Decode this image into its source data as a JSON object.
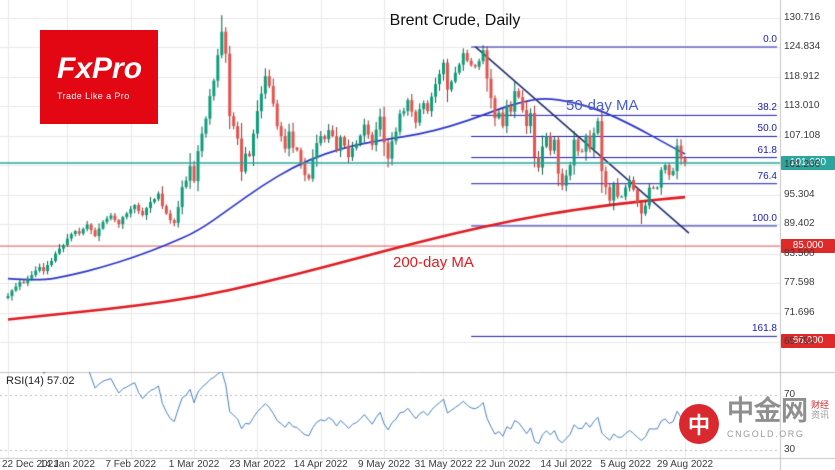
{
  "logo": {
    "name": "FxPro",
    "tagline": "Trade Like a Pro"
  },
  "watermark": {
    "name": "中金网",
    "domain": "CNGOLD.ORG",
    "tags": [
      "财经",
      "资讯"
    ],
    "logo_glyph": "中"
  },
  "colors": {
    "up": "#0f9d7b",
    "up_dark": "#07604a",
    "down": "#e2544e",
    "down_dark": "#9e2f2b",
    "ma50": "#2b35c8",
    "ma50_label": "#4a5cc8",
    "ma200": "#e11b22",
    "fib": "#1b1bb0",
    "trend": "#1c2a6e",
    "price_teal": "#2aa69f",
    "level_red": "#e05252",
    "badge_red": "#e02a2a",
    "grid": "#e8e8e8",
    "separator": "#c4c4c4",
    "rsi_line": "#4a80c0"
  },
  "chart_data": {
    "type": "candlestick",
    "title": "Brent Crude, Daily",
    "ylim": [
      59.8,
      134.24
    ],
    "grid": true,
    "y_ticks": [
      {
        "value": 130.716,
        "label": "130.716"
      },
      {
        "value": 124.834,
        "label": "124.834"
      },
      {
        "value": 118.912,
        "label": "118.912"
      },
      {
        "value": 113.01,
        "label": "113.010"
      },
      {
        "value": 107.108,
        "label": "107.108"
      },
      {
        "value": 101.206,
        "label": "101.206"
      },
      {
        "value": 95.304,
        "label": "95.304"
      },
      {
        "value": 89.402,
        "label": "89.402"
      },
      {
        "value": 83.5,
        "label": "83.500"
      },
      {
        "value": 77.598,
        "label": "77.598"
      },
      {
        "value": 71.696,
        "label": "71.696"
      },
      {
        "value": 65.794,
        "label": "65.794"
      }
    ],
    "x_ticks": [
      {
        "day": 0,
        "label": "22 Dec 2021"
      },
      {
        "day": 15,
        "label": "14 Jan 2022"
      },
      {
        "day": 31,
        "label": "7 Feb 2022"
      },
      {
        "day": 47,
        "label": "1 Mar 2022"
      },
      {
        "day": 63,
        "label": "23 Mar 2022"
      },
      {
        "day": 79,
        "label": "14 Apr 2022"
      },
      {
        "day": 95,
        "label": "9 May 2022"
      },
      {
        "day": 110,
        "label": "31 May 2022"
      },
      {
        "day": 125,
        "label": "22 Jun 2022"
      },
      {
        "day": 141,
        "label": "14 Jul 2022"
      },
      {
        "day": 156,
        "label": "5 Aug 2022"
      },
      {
        "day": 171,
        "label": "29 Aug 2022"
      }
    ],
    "candles": {
      "first_open": 74.6,
      "close": [
        75.0,
        76.1,
        76.9,
        77.8,
        77.6,
        78.5,
        79.2,
        80.1,
        80.8,
        80.0,
        81.2,
        82.0,
        83.5,
        84.5,
        85.2,
        86.5,
        87.4,
        88.0,
        87.5,
        88.4,
        89.3,
        88.2,
        87.0,
        88.5,
        89.8,
        90.5,
        91.1,
        90.2,
        89.4,
        90.8,
        91.5,
        92.4,
        93.2,
        92.0,
        91.2,
        92.6,
        93.8,
        94.4,
        95.5,
        93.0,
        91.5,
        90.2,
        89.6,
        92.8,
        96.8,
        98.1,
        101.0,
        98.0,
        104.0,
        107.5,
        110.5,
        115.0,
        118.1,
        123.2,
        127.9,
        123.5,
        111.0,
        109.0,
        106.5,
        99.9,
        103.5,
        103.0,
        107.5,
        112.0,
        115.5,
        119.0,
        117.0,
        113.5,
        109.0,
        107.0,
        104.5,
        107.9,
        104.7,
        104.2,
        101.5,
        99.2,
        98.5,
        102.6,
        105.6,
        107.0,
        106.4,
        108.2,
        107.0,
        104.1,
        106.8,
        105.1,
        102.8,
        104.6,
        105.5,
        107.1,
        109.3,
        107.3,
        105.2,
        108.3,
        110.9,
        105.7,
        102.5,
        106.0,
        107.9,
        111.5,
        112.0,
        114.2,
        111.9,
        109.7,
        112.4,
        113.6,
        112.0,
        114.9,
        117.4,
        119.4,
        121.7,
        116.3,
        117.9,
        119.7,
        121.3,
        123.6,
        122.1,
        121.2,
        120.9,
        122.0,
        124.2,
        118.5,
        114.6,
        110.6,
        111.7,
        109.0,
        113.1,
        111.9,
        116.0,
        114.8,
        112.2,
        109.0,
        111.6,
        102.8,
        100.7,
        104.9,
        107.0,
        104.1,
        106.3,
        99.5,
        97.1,
        99.1,
        101.2,
        106.3,
        104.0,
        103.9,
        107.1,
        104.4,
        107.6,
        110.0,
        100.0,
        96.8,
        94.1,
        97.4,
        94.9,
        94.9,
        96.7,
        98.2,
        96.3,
        93.7,
        91.5,
        93.1,
        96.7,
        96.6,
        96.7,
        100.2,
        101.2,
        99.2,
        100.0,
        105.1,
        102.5,
        101.6
      ],
      "wick_overrides": {
        "46": {
          "high": 103.6
        },
        "54": {
          "high": 131.2
        },
        "120": {
          "high": 125.2
        },
        "160": {
          "low": 89.4
        }
      }
    },
    "ma50": {
      "label": "50-day MA",
      "points": [
        [
          0,
          78.5
        ],
        [
          8,
          78.0
        ],
        [
          16,
          79.2
        ],
        [
          24,
          80.8
        ],
        [
          32,
          82.8
        ],
        [
          40,
          85.2
        ],
        [
          48,
          88.0
        ],
        [
          56,
          92.5
        ],
        [
          64,
          97.0
        ],
        [
          72,
          100.8
        ],
        [
          80,
          103.5
        ],
        [
          88,
          105.3
        ],
        [
          96,
          106.4
        ],
        [
          104,
          107.4
        ],
        [
          112,
          109.0
        ],
        [
          120,
          111.2
        ],
        [
          126,
          113.0
        ],
        [
          132,
          114.2
        ],
        [
          136,
          114.6
        ],
        [
          142,
          113.9
        ],
        [
          148,
          112.6
        ],
        [
          154,
          110.6
        ],
        [
          160,
          108.2
        ],
        [
          166,
          105.6
        ],
        [
          171,
          103.4
        ]
      ]
    },
    "ma200": {
      "label": "200-day MA",
      "points": [
        [
          0,
          70.3
        ],
        [
          16,
          71.6
        ],
        [
          32,
          73.0
        ],
        [
          48,
          74.8
        ],
        [
          64,
          77.6
        ],
        [
          80,
          80.8
        ],
        [
          96,
          84.2
        ],
        [
          112,
          87.4
        ],
        [
          128,
          90.2
        ],
        [
          144,
          92.4
        ],
        [
          156,
          93.6
        ],
        [
          164,
          94.3
        ],
        [
          171,
          94.8
        ]
      ]
    },
    "fib": {
      "start_day": 117,
      "levels": [
        {
          "pct": "0.0",
          "price": 124.83
        },
        {
          "pct": "38.2",
          "price": 111.15
        },
        {
          "pct": "50.0",
          "price": 106.93
        },
        {
          "pct": "61.8",
          "price": 102.71
        },
        {
          "pct": "76.4",
          "price": 97.48
        },
        {
          "pct": "100.0",
          "price": 89.03
        },
        {
          "pct": "161.8",
          "price": 66.92
        }
      ]
    },
    "trendline": {
      "from_day": 118,
      "from_price": 124.9,
      "to_day": 172,
      "to_price": 87.6
    },
    "price_line": {
      "value": 101.62,
      "label": "101.620"
    },
    "levels": [
      {
        "value": 85.0,
        "label": "85.000"
      },
      {
        "value": 66.0,
        "label": "66.000"
      }
    ],
    "rsi": {
      "label": "RSI(14) 57.02",
      "period": 14,
      "current": 57.02,
      "ylim": [
        24.2,
        86.7
      ],
      "ticks": [
        {
          "value": 70,
          "label": "70"
        },
        {
          "value": 30,
          "label": "30"
        }
      ]
    }
  }
}
